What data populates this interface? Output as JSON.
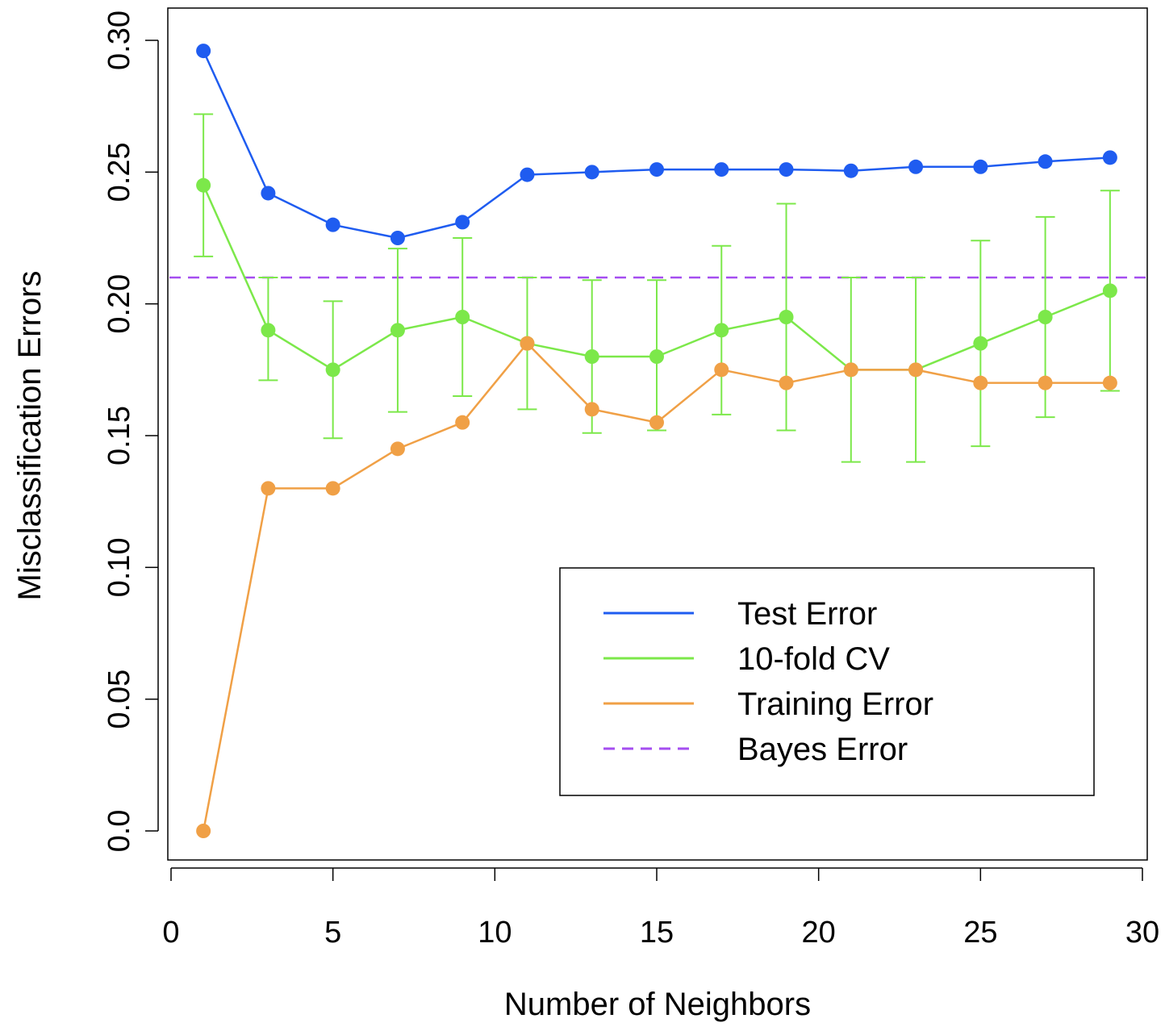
{
  "chart_data": {
    "type": "line",
    "title": "",
    "xlabel": "Number of Neighbors",
    "ylabel": "Misclassification Errors",
    "xlim": [
      0,
      30
    ],
    "ylim": [
      0.0,
      0.3
    ],
    "xticks": [
      0,
      5,
      10,
      15,
      20,
      25,
      30
    ],
    "xtick_labels": [
      "0",
      "5",
      "10",
      "15",
      "20",
      "25",
      "30"
    ],
    "yticks": [
      0.0,
      0.05,
      0.1,
      0.15,
      0.2,
      0.25,
      0.3
    ],
    "ytick_labels": [
      "0.0",
      "0.05",
      "0.10",
      "0.15",
      "0.20",
      "0.25",
      "0.30"
    ],
    "grid": false,
    "legend_position": "bottom-right",
    "x": [
      1,
      3,
      5,
      7,
      9,
      11,
      13,
      15,
      17,
      19,
      21,
      23,
      25,
      27,
      29
    ],
    "series": [
      {
        "name": "Test Error",
        "color": "#1f5cf0",
        "style": "solid",
        "markers": true,
        "values": [
          0.296,
          0.242,
          0.23,
          0.225,
          0.231,
          0.249,
          0.25,
          0.251,
          0.251,
          0.251,
          0.2505,
          0.252,
          0.252,
          0.254,
          0.2555
        ]
      },
      {
        "name": "10-fold CV",
        "color": "#7ce84a",
        "style": "solid",
        "markers": true,
        "values": [
          0.245,
          0.19,
          0.175,
          0.19,
          0.195,
          0.185,
          0.18,
          0.18,
          0.19,
          0.195,
          0.175,
          0.175,
          0.185,
          0.195,
          0.205
        ],
        "error_low": [
          0.218,
          0.171,
          0.149,
          0.159,
          0.165,
          0.16,
          0.151,
          0.152,
          0.158,
          0.152,
          0.14,
          0.14,
          0.146,
          0.157,
          0.167
        ],
        "error_high": [
          0.272,
          0.21,
          0.201,
          0.221,
          0.225,
          0.21,
          0.209,
          0.209,
          0.222,
          0.238,
          0.21,
          0.21,
          0.224,
          0.233,
          0.243
        ]
      },
      {
        "name": "Training Error",
        "color": "#f0a046",
        "style": "solid",
        "markers": true,
        "values": [
          0.0,
          0.13,
          0.13,
          0.145,
          0.155,
          0.185,
          0.16,
          0.155,
          0.175,
          0.17,
          0.175,
          0.175,
          0.17,
          0.17,
          0.17
        ]
      },
      {
        "name": "Bayes Error",
        "color": "#a54ef0",
        "style": "dashed",
        "markers": false,
        "constant": 0.21
      }
    ]
  }
}
